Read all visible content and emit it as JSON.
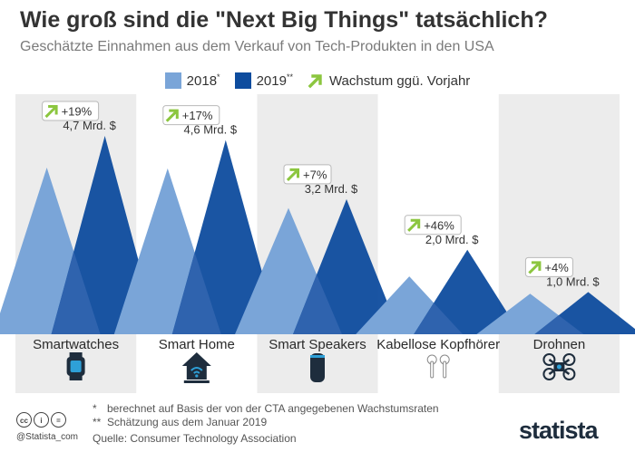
{
  "chart_data": {
    "type": "triangle-bar",
    "title": "Wie groß sind die \"Next Big Things\" tatsächlich?",
    "subtitle": "Geschätzte Einnahmen aus dem Verkauf von Tech-Produkten in den USA",
    "unit": "Mrd. $",
    "ylim": [
      0,
      5
    ],
    "legend": {
      "s2018": "2018",
      "s2018_mark": "*",
      "s2019": "2019",
      "s2019_mark": "**",
      "growth": "Wachstum ggü. Vorjahr"
    },
    "categories": [
      "Smartwatches",
      "Smart Home",
      "Smart Speakers",
      "Kabellose Kopfhörer",
      "Drohnen"
    ],
    "series": [
      {
        "name": "2018",
        "values": [
          3.95,
          3.93,
          2.99,
          1.37,
          0.96
        ]
      },
      {
        "name": "2019",
        "values": [
          4.7,
          4.6,
          3.2,
          2.0,
          1.0
        ]
      }
    ],
    "value_labels": [
      "4,7 Mrd. $",
      "4,6 Mrd. $",
      "3,2 Mrd. $",
      "2,0 Mrd. $",
      "1,0 Mrd. $"
    ],
    "growth_labels": [
      "+19%",
      "+17%",
      "+7%",
      "+46%",
      "+4%"
    ],
    "icons": [
      "smartwatch-icon",
      "smart-home-icon",
      "smart-speaker-icon",
      "earbuds-icon",
      "drone-icon"
    ],
    "colors": {
      "s2018": "#7aa5d8",
      "s2019": "#0e4c9e",
      "overlap": "#2f63ae",
      "panel": "#ececec",
      "growth": "#8cc63f"
    }
  },
  "footnotes": [
    {
      "mark": "*",
      "text": "berechnet auf Basis der von der CTA angegebenen Wachstumsraten"
    },
    {
      "mark": "**",
      "text": "Schätzung aus dem Januar 2019"
    }
  ],
  "source": "Quelle: Consumer Technology Association",
  "handle": "@Statista_com",
  "license_icons": [
    "cc-icon",
    "by-icon",
    "nd-icon"
  ],
  "license_glyphs": [
    "cc",
    "i",
    "="
  ],
  "brand": "statista"
}
